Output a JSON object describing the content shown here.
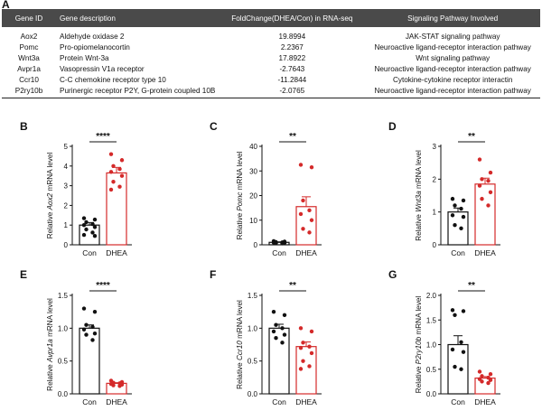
{
  "panel_a": {
    "letter": "A",
    "headers": [
      "Gene ID",
      "Gene description",
      "FoldChange(DHEA/Con) in RNA-seq",
      "Signaling Pathway Involved"
    ],
    "rows": [
      [
        "Aox2",
        "Aldehyde oxidase 2",
        "19.8994",
        "JAK-STAT signaling pathway"
      ],
      [
        "Pomc",
        "Pro-opiomelanocortin",
        "2.2367",
        "Neuroactive ligand-receptor interaction pathway"
      ],
      [
        "Wnt3a",
        "Protein Wnt-3a",
        "17.8922",
        "Wnt signaling pathway"
      ],
      [
        "Avpr1a",
        "Vasopressin V1a receptor",
        "-2.7643",
        "Neuroactive ligand-receptor interaction pathway"
      ],
      [
        "Ccr10",
        "C-C chemokine receptor type 10",
        "-11.2844",
        "Cytokine-cytokine receptor interactin"
      ],
      [
        "P2ry10b",
        "Purinergic receptor P2Y, G-protein coupled 10B",
        "-2.0765",
        "Neuroactive ligand-receptor interaction pathway"
      ]
    ]
  },
  "colors": {
    "con": "#111111",
    "dhea": "#d42a2a",
    "header_bg": "#4a4a4a"
  },
  "chart_data": [
    {
      "type": "bar",
      "letter": "B",
      "gene": "Aox2",
      "ylabel": "Relative Aox2 mRNA level",
      "ylabel_parts": [
        "Relative ",
        "Aox2",
        " mRNA level"
      ],
      "ylim": [
        0,
        5
      ],
      "yticks": [
        "0",
        "1",
        "2",
        "3",
        "4",
        "5"
      ],
      "significance": "****",
      "categories": [
        "Con",
        "DHEA"
      ],
      "series": [
        {
          "name": "Con",
          "mean": 1.0,
          "sem": 0.13,
          "points": [
            1.35,
            1.28,
            1.15,
            1.05,
            1.0,
            0.9,
            0.78,
            0.62,
            0.5,
            0.45
          ]
        },
        {
          "name": "DHEA",
          "mean": 3.65,
          "sem": 0.28,
          "points": [
            4.6,
            4.3,
            4.0,
            3.85,
            3.7,
            3.5,
            3.2,
            2.95,
            2.8
          ]
        }
      ]
    },
    {
      "type": "bar",
      "letter": "C",
      "gene": "Pomc",
      "ylabel": "Relative Pomc mRNA level",
      "ylabel_parts": [
        "Relative ",
        "Pomc",
        " mRNA level"
      ],
      "ylim": [
        0,
        40
      ],
      "yticks": [
        "0",
        "10",
        "20",
        "30",
        "40"
      ],
      "significance": "**",
      "categories": [
        "Con",
        "DHEA"
      ],
      "series": [
        {
          "name": "Con",
          "mean": 1.0,
          "sem": 0.2,
          "points": [
            1.5,
            1.3,
            1.1,
            1.0,
            0.9,
            0.8,
            0.7,
            0.6
          ]
        },
        {
          "name": "DHEA",
          "mean": 15.5,
          "sem": 4.0,
          "points": [
            32.5,
            31.5,
            18.0,
            14.0,
            12.5,
            10.0,
            6.5,
            5.0
          ]
        }
      ]
    },
    {
      "type": "bar",
      "letter": "D",
      "gene": "Wnt3a",
      "ylabel": "Relative Wnt3a mRNA level",
      "ylabel_parts": [
        "Relative ",
        "Wnt3a",
        " mRNA level"
      ],
      "ylim": [
        0,
        3
      ],
      "yticks": [
        "0",
        "1",
        "2",
        "3"
      ],
      "significance": "**",
      "categories": [
        "Con",
        "DHEA"
      ],
      "series": [
        {
          "name": "Con",
          "mean": 1.0,
          "sem": 0.12,
          "points": [
            1.4,
            1.35,
            1.2,
            1.1,
            0.9,
            0.85,
            0.6,
            0.5
          ]
        },
        {
          "name": "DHEA",
          "mean": 1.85,
          "sem": 0.18,
          "points": [
            2.6,
            2.2,
            2.0,
            1.95,
            1.8,
            1.6,
            1.4,
            1.2
          ]
        }
      ]
    },
    {
      "type": "bar",
      "letter": "E",
      "gene": "Avpr1a",
      "ylabel": "Relative Avpr1a mRNA level",
      "ylabel_parts": [
        "Relative ",
        "Avpr1a",
        " mRNA level"
      ],
      "ylim": [
        0,
        1.5
      ],
      "yticks": [
        "0.0",
        "0.5",
        "1.0",
        "1.5"
      ],
      "significance": "****",
      "categories": [
        "Con",
        "DHEA"
      ],
      "series": [
        {
          "name": "Con",
          "mean": 1.0,
          "sem": 0.05,
          "points": [
            1.3,
            1.25,
            1.05,
            1.02,
            0.98,
            0.92,
            0.9,
            0.82
          ]
        },
        {
          "name": "DHEA",
          "mean": 0.16,
          "sem": 0.01,
          "points": [
            0.2,
            0.18,
            0.17,
            0.16,
            0.15,
            0.14,
            0.13,
            0.12
          ]
        }
      ]
    },
    {
      "type": "bar",
      "letter": "F",
      "gene": "Ccr10",
      "ylabel": "Relative Ccr10 mRNA level",
      "ylabel_parts": [
        "Relative ",
        "Ccr10",
        " mRNA level"
      ],
      "ylim": [
        0,
        1.5
      ],
      "yticks": [
        "0.0",
        "0.5",
        "1.0",
        "1.5"
      ],
      "significance": "**",
      "categories": [
        "Con",
        "DHEA"
      ],
      "series": [
        {
          "name": "Con",
          "mean": 1.0,
          "sem": 0.06,
          "points": [
            1.25,
            1.2,
            1.05,
            1.0,
            0.95,
            0.9,
            0.85,
            0.78
          ]
        },
        {
          "name": "DHEA",
          "mean": 0.72,
          "sem": 0.07,
          "points": [
            1.0,
            0.95,
            0.78,
            0.72,
            0.7,
            0.62,
            0.5,
            0.42,
            0.38
          ]
        }
      ]
    },
    {
      "type": "bar",
      "letter": "G",
      "gene": "P2ry10b",
      "ylabel": "Relative P2ry10b mRNA level",
      "ylabel_parts": [
        "Relative ",
        "P2ry10b",
        " mRNA level"
      ],
      "ylim": [
        0,
        2.0
      ],
      "yticks": [
        "0.0",
        "0.5",
        "1.0",
        "1.5",
        "2.0"
      ],
      "significance": "**",
      "categories": [
        "Con",
        "DHEA"
      ],
      "series": [
        {
          "name": "Con",
          "mean": 1.0,
          "sem": 0.18,
          "points": [
            1.7,
            1.68,
            1.6,
            1.05,
            0.9,
            0.85,
            0.55,
            0.5
          ]
        },
        {
          "name": "DHEA",
          "mean": 0.32,
          "sem": 0.03,
          "points": [
            0.45,
            0.4,
            0.36,
            0.33,
            0.3,
            0.28,
            0.25,
            0.22
          ]
        }
      ]
    }
  ]
}
